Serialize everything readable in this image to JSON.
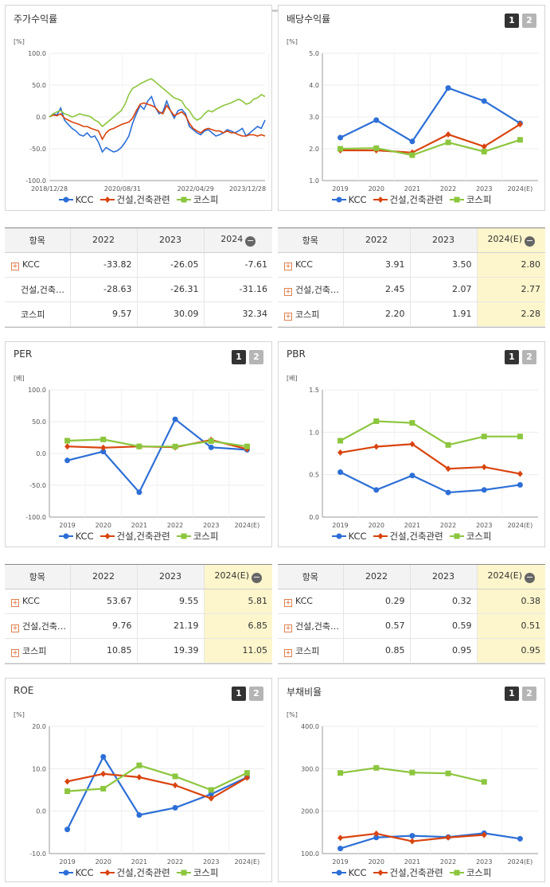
{
  "colors": {
    "kcc": "#2d6fd6",
    "construction": "#d9440e",
    "kospi": "#8cc63e",
    "estimate_bg": "#fdf6cc"
  },
  "pager": {
    "one": "1",
    "two": "2"
  },
  "legend": {
    "kcc": "KCC",
    "construction": "건설,건축관련",
    "kospi": "코스피"
  },
  "stock_return": {
    "title": "주가수익률",
    "unit": "[%]",
    "x_ticks": [
      "2018/12/28",
      "2020/08/31",
      "2022/04/29",
      "2023/12/28"
    ],
    "y_ticks": [
      "100.0",
      "50.0",
      "0.0",
      "-50.0",
      "-100.0"
    ]
  },
  "dividend": {
    "title": "배당수익률",
    "unit": "[%]",
    "x_ticks": [
      "2019",
      "2020",
      "2021",
      "2022",
      "2023",
      "2024(E)"
    ],
    "y_ticks": [
      "5.0",
      "4.0",
      "3.0",
      "2.0",
      "1.0"
    ]
  },
  "per": {
    "title": "PER",
    "unit": "[배]",
    "x_ticks": [
      "2019",
      "2020",
      "2021",
      "2022",
      "2023",
      "2024(E)"
    ],
    "y_ticks": [
      "100.0",
      "50.0",
      "0.0",
      "-50.0",
      "-100.0"
    ]
  },
  "pbr": {
    "title": "PBR",
    "unit": "[배]",
    "x_ticks": [
      "2019",
      "2020",
      "2021",
      "2022",
      "2023",
      "2024(E)"
    ],
    "y_ticks": [
      "1.5",
      "1.0",
      "0.5",
      "0.0"
    ]
  },
  "roe": {
    "title": "ROE",
    "unit": "[%]",
    "x_ticks": [
      "2019",
      "2020",
      "2021",
      "2022",
      "2023",
      "2024(E)"
    ],
    "y_ticks": [
      "20.0",
      "10.0",
      "0.0",
      "-10.0"
    ]
  },
  "debt": {
    "title": "부채비율",
    "unit": "[%]",
    "x_ticks": [
      "2019",
      "2020",
      "2021",
      "2022",
      "2023",
      "2024(E)"
    ],
    "y_ticks": [
      "400.0",
      "300.0",
      "200.0",
      "100.0"
    ]
  },
  "tables": {
    "stock_return": {
      "headers": [
        "항목",
        "2022",
        "2023",
        "2024"
      ],
      "rows": [
        {
          "label": "KCC",
          "values": [
            "-33.82",
            "-26.05",
            "-7.61"
          ]
        },
        {
          "label": "건설,건축…",
          "values": [
            "-28.63",
            "-26.31",
            "-31.16"
          ]
        },
        {
          "label": "코스피",
          "values": [
            "9.57",
            "30.09",
            "32.34"
          ]
        }
      ]
    },
    "dividend": {
      "headers": [
        "항목",
        "2022",
        "2023",
        "2024(E)"
      ],
      "rows": [
        {
          "label": "KCC",
          "values": [
            "3.91",
            "3.50",
            "2.80"
          ]
        },
        {
          "label": "건설,건축…",
          "values": [
            "2.45",
            "2.07",
            "2.77"
          ]
        },
        {
          "label": "코스피",
          "values": [
            "2.20",
            "1.91",
            "2.28"
          ]
        }
      ]
    },
    "per": {
      "headers": [
        "항목",
        "2022",
        "2023",
        "2024(E)"
      ],
      "rows": [
        {
          "label": "KCC",
          "values": [
            "53.67",
            "9.55",
            "5.81"
          ]
        },
        {
          "label": "건설,건축…",
          "values": [
            "9.76",
            "21.19",
            "6.85"
          ]
        },
        {
          "label": "코스피",
          "values": [
            "10.85",
            "19.39",
            "11.05"
          ]
        }
      ]
    },
    "pbr": {
      "headers": [
        "항목",
        "2022",
        "2023",
        "2024(E)"
      ],
      "rows": [
        {
          "label": "KCC",
          "values": [
            "0.29",
            "0.32",
            "0.38"
          ]
        },
        {
          "label": "건설,건축…",
          "values": [
            "0.57",
            "0.59",
            "0.51"
          ]
        },
        {
          "label": "코스피",
          "values": [
            "0.85",
            "0.95",
            "0.95"
          ]
        }
      ]
    }
  },
  "chart_data": [
    {
      "type": "line",
      "title": "주가수익률",
      "ylabel": "[%]",
      "ylim": [
        -100,
        100
      ],
      "x_range": [
        "2018/12/28",
        "2024/12"
      ],
      "series": [
        {
          "name": "KCC",
          "values": [
            0,
            5,
            3,
            14,
            -5,
            -12,
            -18,
            -22,
            -28,
            -30,
            -25,
            -32,
            -30,
            -40,
            -55,
            -48,
            -52,
            -55,
            -53,
            -48,
            -40,
            -30,
            -10,
            5,
            18,
            12,
            25,
            32,
            15,
            5,
            8,
            25,
            10,
            -2,
            10,
            12,
            5,
            -15,
            -20,
            -25,
            -28,
            -22,
            -20,
            -25,
            -30,
            -28,
            -25,
            -20,
            -22,
            -25,
            -22,
            -18,
            -30,
            -25,
            -20,
            -15,
            -18,
            -5
          ]
        },
        {
          "name": "건설,건축관련",
          "values": [
            0,
            3,
            2,
            5,
            -2,
            -5,
            -8,
            -10,
            -12,
            -15,
            -15,
            -18,
            -20,
            -22,
            -35,
            -25,
            -20,
            -18,
            -15,
            -12,
            -10,
            -8,
            -2,
            10,
            20,
            22,
            20,
            18,
            15,
            8,
            5,
            18,
            10,
            2,
            5,
            8,
            2,
            -10,
            -18,
            -22,
            -25,
            -20,
            -18,
            -20,
            -22,
            -22,
            -25,
            -22,
            -25,
            -25,
            -28,
            -30,
            -30,
            -28,
            -28,
            -30,
            -28,
            -30
          ]
        },
        {
          "name": "코스피",
          "values": [
            0,
            5,
            8,
            10,
            5,
            3,
            0,
            2,
            5,
            3,
            2,
            0,
            -5,
            -8,
            -15,
            -10,
            -5,
            0,
            5,
            10,
            20,
            35,
            45,
            48,
            52,
            55,
            58,
            60,
            55,
            50,
            45,
            40,
            35,
            30,
            28,
            25,
            15,
            10,
            0,
            -5,
            -2,
            5,
            10,
            8,
            12,
            15,
            18,
            20,
            22,
            25,
            28,
            25,
            20,
            22,
            28,
            30,
            35,
            32
          ]
        }
      ]
    },
    {
      "type": "line",
      "title": "배당수익률",
      "ylabel": "[%]",
      "categories": [
        "2019",
        "2020",
        "2021",
        "2022",
        "2023",
        "2024(E)"
      ],
      "ylim": [
        1.0,
        5.0
      ],
      "series": [
        {
          "name": "KCC",
          "values": [
            2.35,
            2.9,
            2.23,
            3.91,
            3.5,
            2.8
          ]
        },
        {
          "name": "건설,건축관련",
          "values": [
            1.95,
            1.95,
            1.88,
            2.45,
            2.07,
            2.77
          ]
        },
        {
          "name": "코스피",
          "values": [
            2.0,
            2.02,
            1.8,
            2.2,
            1.91,
            2.28
          ]
        }
      ]
    },
    {
      "type": "line",
      "title": "PER",
      "ylabel": "[배]",
      "categories": [
        "2019",
        "2020",
        "2021",
        "2022",
        "2023",
        "2024(E)"
      ],
      "ylim": [
        -100,
        100
      ],
      "series": [
        {
          "name": "KCC",
          "values": [
            -11,
            3,
            -61,
            53.67,
            9.55,
            5.81
          ]
        },
        {
          "name": "건설,건축관련",
          "values": [
            11,
            9,
            11,
            9.76,
            21.19,
            6.85
          ]
        },
        {
          "name": "코스피",
          "values": [
            20,
            22,
            11,
            10.85,
            19.39,
            11.05
          ]
        }
      ]
    },
    {
      "type": "line",
      "title": "PBR",
      "ylabel": "[배]",
      "categories": [
        "2019",
        "2020",
        "2021",
        "2022",
        "2023",
        "2024(E)"
      ],
      "ylim": [
        0.0,
        1.5
      ],
      "series": [
        {
          "name": "KCC",
          "values": [
            0.53,
            0.32,
            0.49,
            0.29,
            0.32,
            0.38
          ]
        },
        {
          "name": "건설,건축관련",
          "values": [
            0.76,
            0.83,
            0.86,
            0.57,
            0.59,
            0.51
          ]
        },
        {
          "name": "코스피",
          "values": [
            0.9,
            1.13,
            1.11,
            0.85,
            0.95,
            0.95
          ]
        }
      ]
    },
    {
      "type": "line",
      "title": "ROE",
      "ylabel": "[%]",
      "categories": [
        "2019",
        "2020",
        "2021",
        "2022",
        "2023",
        "2024(E)"
      ],
      "ylim": [
        -10,
        20
      ],
      "series": [
        {
          "name": "KCC",
          "values": [
            -4.3,
            12.8,
            -0.9,
            0.8,
            4.0,
            8.0
          ]
        },
        {
          "name": "건설,건축관련",
          "values": [
            7.0,
            8.8,
            8.0,
            6.1,
            3.0,
            7.9
          ]
        },
        {
          "name": "코스피",
          "values": [
            4.7,
            5.3,
            10.8,
            8.2,
            5.0,
            9.0
          ]
        }
      ]
    },
    {
      "type": "line",
      "title": "부채비율",
      "ylabel": "[%]",
      "categories": [
        "2019",
        "2020",
        "2021",
        "2022",
        "2023",
        "2024(E)"
      ],
      "ylim": [
        100,
        400
      ],
      "series": [
        {
          "name": "KCC",
          "values": [
            112,
            138,
            142,
            139,
            148,
            135
          ]
        },
        {
          "name": "건설,건축관련",
          "values": [
            137,
            147,
            129,
            138,
            144,
            null
          ]
        },
        {
          "name": "코스피",
          "values": [
            290,
            302,
            291,
            289,
            269,
            null
          ]
        }
      ]
    }
  ]
}
